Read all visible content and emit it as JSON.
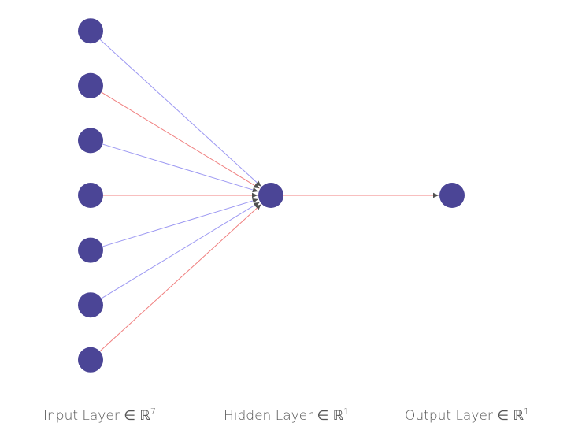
{
  "diagram": {
    "title": "",
    "colors": {
      "node": "#4b4596",
      "positive_edge": "#9c98f2",
      "negative_edge": "#f07f7f",
      "arrowhead": "#505050",
      "label_text": "#555555"
    },
    "layers": [
      {
        "id": "input",
        "name": "Input Layer",
        "size": 7,
        "label": "Input Layer ∈ ℝ",
        "superscript": "7"
      },
      {
        "id": "hidden",
        "name": "Hidden Layer",
        "size": 1,
        "label": "Hidden Layer ∈ ℝ",
        "superscript": "1"
      },
      {
        "id": "output",
        "name": "Output Layer",
        "size": 1,
        "label": "Output Layer ∈ ℝ",
        "superscript": "1"
      }
    ],
    "edges": [
      {
        "from": "input-0",
        "to": "hidden-0",
        "sign": "positive"
      },
      {
        "from": "input-1",
        "to": "hidden-0",
        "sign": "negative"
      },
      {
        "from": "input-2",
        "to": "hidden-0",
        "sign": "positive"
      },
      {
        "from": "input-3",
        "to": "hidden-0",
        "sign": "negative"
      },
      {
        "from": "input-4",
        "to": "hidden-0",
        "sign": "positive"
      },
      {
        "from": "input-5",
        "to": "hidden-0",
        "sign": "positive"
      },
      {
        "from": "input-6",
        "to": "hidden-0",
        "sign": "negative"
      },
      {
        "from": "hidden-0",
        "to": "output-0",
        "sign": "negative"
      }
    ]
  }
}
